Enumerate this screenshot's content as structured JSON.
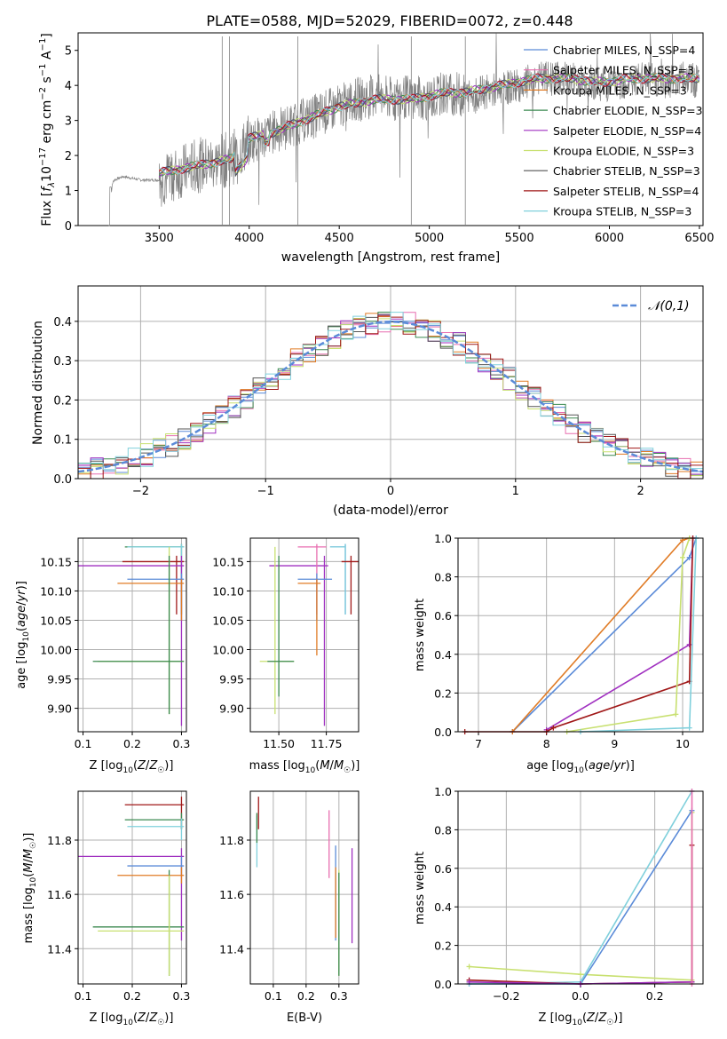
{
  "colors": {
    "grid": "#b0b0b0",
    "chabrier_miles": "#5b8bd8",
    "salpeter_miles": "#e86fb0",
    "kroupa_miles": "#e07b25",
    "chabrier_elodie": "#3b8a50",
    "salpeter_elodie": "#a030c0",
    "kroupa_elodie": "#c8e070",
    "chabrier_stelib": "#555555",
    "salpeter_stelib": "#a01818",
    "kroupa_stelib": "#80d0dc",
    "normal": "#5b8bd8",
    "spectrum_data": "#808080"
  },
  "chart_data": [
    {
      "type": "line",
      "title": "PLATE=0588, MJD=52029, FIBERID=0072, z=0.448",
      "xlabel": "wavelength [Angstrom, rest frame]",
      "ylabel": "Flux [f_λ 10^-17 erg cm^-2 s^-1 A^-1]",
      "xlim": [
        3050,
        6520
      ],
      "ylim": [
        0,
        5.5
      ],
      "xticks": [
        "3500",
        "4000",
        "4500",
        "5000",
        "5500",
        "6000",
        "6500"
      ],
      "yticks": [
        "0",
        "1",
        "2",
        "3",
        "4",
        "5"
      ],
      "legend_position": "top-right",
      "legend": [
        {
          "name": "Chabrier MILES, N_SSP=4",
          "color": "#5b8bd8"
        },
        {
          "name": "Salpeter MILES, N_SSP=3",
          "color": "#e86fb0"
        },
        {
          "name": "Kroupa MILES, N_SSP=3",
          "color": "#e07b25"
        },
        {
          "name": "Chabrier ELODIE, N_SSP=3",
          "color": "#3b8a50"
        },
        {
          "name": "Salpeter ELODIE, N_SSP=4",
          "color": "#a030c0"
        },
        {
          "name": "Kroupa ELODIE, N_SSP=3",
          "color": "#c8e070"
        },
        {
          "name": "Chabrier STELIB, N_SSP=3",
          "color": "#555555"
        },
        {
          "name": "Salpeter STELIB, N_SSP=4",
          "color": "#a01818"
        },
        {
          "name": "Kroupa STELIB, N_SSP=3",
          "color": "#80d0dc"
        }
      ],
      "series": [
        {
          "name": "observed spectrum",
          "x": [
            3050,
            3220,
            3240,
            3250,
            3300,
            3400,
            3500,
            3600,
            3700,
            3800,
            3900,
            4000,
            4100,
            4200,
            4300,
            4400,
            4500,
            4600,
            4700,
            4800,
            4900,
            5000,
            5100,
            5200,
            5300,
            5400,
            5500,
            5600,
            5700,
            5800,
            5900,
            6000,
            6100,
            6200,
            6300,
            6400,
            6500
          ],
          "y": [
            null,
            0,
            1.2,
            1.3,
            1.4,
            1.3,
            1.3,
            1.5,
            1.7,
            1.8,
            1.9,
            2.4,
            2.6,
            2.8,
            3.0,
            3.2,
            3.4,
            3.6,
            3.7,
            3.6,
            3.7,
            3.6,
            3.8,
            3.7,
            3.8,
            3.9,
            4.0,
            4.2,
            4.2,
            4.2,
            4.1,
            4.0,
            4.1,
            4.2,
            4.1,
            4.2,
            4.1
          ]
        },
        {
          "name": "model",
          "x": [
            3500,
            3600,
            3700,
            3800,
            3900,
            4000,
            4100,
            4200,
            4300,
            4400,
            4500,
            4600,
            4700,
            4800,
            4900,
            5000,
            5100,
            5200,
            5300,
            5400,
            5500,
            5600,
            5700,
            5800,
            5900,
            6000,
            6100,
            6200,
            6300,
            6400,
            6500
          ],
          "y": [
            1.5,
            1.6,
            1.7,
            1.8,
            1.9,
            2.5,
            2.6,
            2.8,
            3.0,
            3.2,
            3.4,
            3.5,
            3.6,
            3.6,
            3.6,
            3.7,
            3.8,
            3.8,
            3.9,
            4.0,
            4.1,
            4.2,
            4.2,
            4.2,
            4.1,
            4.1,
            4.2,
            4.2,
            4.2,
            4.2,
            4.2
          ]
        }
      ]
    },
    {
      "type": "line",
      "xlabel": "(data-model)/error",
      "ylabel": "Normed distribution",
      "xlim": [
        -2.5,
        2.5
      ],
      "ylim": [
        0,
        0.49
      ],
      "xticks": [
        "−2",
        "−1",
        "0",
        "1",
        "2"
      ],
      "yticks": [
        "0.0",
        "0.1",
        "0.2",
        "0.3",
        "0.4"
      ],
      "legend": [
        {
          "name": "𝒩(0,1)",
          "color": "#5b8bd8"
        }
      ],
      "legend_position": "top-right",
      "histogram_bin_width": 0.1,
      "histogram_bin_start": -2.5
    },
    {
      "type": "scatter",
      "xlabel": "Z [log10(Z/Z☉)]",
      "ylabel": "age  [log10(age/yr)]",
      "xlim": [
        0.09,
        0.31
      ],
      "ylim": [
        9.86,
        10.19
      ],
      "xticks": [
        "0.1",
        "0.2",
        "0.3"
      ],
      "yticks": [
        "9.90",
        "9.95",
        "10.00",
        "10.05",
        "10.10",
        "10.15"
      ],
      "points": [
        {
          "x": 0.3,
          "y": 10.175,
          "xlo": 0.185,
          "xhi": 0.305,
          "ylo": 10.06,
          "yhi": 10.18,
          "color": "#3b8a50"
        },
        {
          "x": 0.3,
          "y": 10.175,
          "xlo": 0.19,
          "xhi": 0.305,
          "ylo": 10.06,
          "yhi": 10.18,
          "color": "#80d0dc"
        },
        {
          "x": 0.29,
          "y": 10.15,
          "xlo": 0.18,
          "xhi": 0.305,
          "ylo": 10.06,
          "yhi": 10.16,
          "color": "#a01818"
        },
        {
          "x": 0.3,
          "y": 10.143,
          "xlo": 0.09,
          "xhi": 0.305,
          "ylo": 9.87,
          "yhi": 10.16,
          "color": "#a030c0"
        },
        {
          "x": 0.3,
          "y": 10.12,
          "xlo": 0.19,
          "xhi": 0.305,
          "ylo": 10.05,
          "yhi": 10.13,
          "color": "#5b8bd8"
        },
        {
          "x": 0.3,
          "y": 10.113,
          "xlo": 0.17,
          "xhi": 0.305,
          "ylo": 10.05,
          "yhi": 10.12,
          "color": "#e07b25"
        },
        {
          "x": 0.275,
          "y": 9.98,
          "xlo": 0.13,
          "xhi": 0.305,
          "ylo": 9.89,
          "yhi": 10.175,
          "color": "#c8e070"
        },
        {
          "x": 0.275,
          "y": 9.98,
          "xlo": 0.12,
          "xhi": 0.305,
          "ylo": 9.89,
          "yhi": 10.16,
          "color": "#3b8a50"
        }
      ]
    },
    {
      "type": "scatter",
      "xlabel": "mass [log10(M/M☉)]",
      "ylabel": "",
      "xlim": [
        11.35,
        11.92
      ],
      "ylim": [
        9.86,
        10.19
      ],
      "xticks": [
        "11.50",
        "11.75"
      ],
      "yticks": [
        "9.90",
        "9.95",
        "10.00",
        "10.05",
        "10.10",
        "10.15"
      ],
      "points": [
        {
          "x": 11.85,
          "y": 10.175,
          "xlo": 11.77,
          "xhi": 11.85,
          "ylo": 10.06,
          "yhi": 10.18,
          "color": "#5b8bd8"
        },
        {
          "x": 11.85,
          "y": 10.175,
          "xlo": 11.77,
          "xhi": 11.85,
          "ylo": 10.06,
          "yhi": 10.18,
          "color": "#80d0dc"
        },
        {
          "x": 11.88,
          "y": 10.15,
          "xlo": 11.83,
          "xhi": 11.92,
          "ylo": 10.06,
          "yhi": 10.16,
          "color": "#a01818"
        },
        {
          "x": 11.74,
          "y": 10.143,
          "xlo": 11.45,
          "xhi": 11.76,
          "ylo": 9.87,
          "yhi": 10.16,
          "color": "#a030c0"
        },
        {
          "x": 11.7,
          "y": 10.175,
          "xlo": 11.6,
          "xhi": 11.75,
          "ylo": 10.06,
          "yhi": 10.18,
          "color": "#e86fb0"
        },
        {
          "x": 11.7,
          "y": 10.12,
          "xlo": 11.6,
          "xhi": 11.78,
          "ylo": 10.05,
          "yhi": 10.13,
          "color": "#5b8bd8"
        },
        {
          "x": 11.7,
          "y": 10.113,
          "xlo": 11.6,
          "xhi": 11.72,
          "ylo": 9.99,
          "yhi": 10.12,
          "color": "#e07b25"
        },
        {
          "x": 11.48,
          "y": 9.98,
          "xlo": 11.4,
          "xhi": 11.58,
          "ylo": 9.89,
          "yhi": 10.175,
          "color": "#c8e070"
        },
        {
          "x": 11.5,
          "y": 9.98,
          "xlo": 11.44,
          "xhi": 11.58,
          "ylo": 9.92,
          "yhi": 10.16,
          "color": "#3b8a50"
        }
      ]
    },
    {
      "type": "line",
      "xlabel": "age  [log10(age/yr)]",
      "ylabel": "mass weight",
      "xlim": [
        6.7,
        10.3
      ],
      "ylim": [
        0,
        1.0
      ],
      "xticks": [
        "7",
        "8",
        "9",
        "10"
      ],
      "yticks": [
        "0.0",
        "0.2",
        "0.4",
        "0.6",
        "0.8",
        "1.0"
      ],
      "series": [
        {
          "color": "#5b8bd8",
          "x": [
            7.5,
            10.1,
            10.2
          ],
          "y": [
            0.0,
            0.9,
            1.0
          ]
        },
        {
          "color": "#e07b25",
          "x": [
            7.5,
            10.0,
            10.1
          ],
          "y": [
            0.0,
            0.99,
            1.0
          ]
        },
        {
          "color": "#a030c0",
          "x": [
            8.0,
            10.1,
            10.15
          ],
          "y": [
            0.01,
            0.45,
            1.0
          ]
        },
        {
          "color": "#a01818",
          "x": [
            6.8,
            8.0,
            8.1,
            10.1,
            10.15
          ],
          "y": [
            0.0,
            0.0,
            0.02,
            0.26,
            1.0
          ]
        },
        {
          "color": "#c8e070",
          "x": [
            8.3,
            9.9,
            10.0,
            10.1
          ],
          "y": [
            0.0,
            0.09,
            0.9,
            1.0
          ]
        },
        {
          "color": "#80d0dc",
          "x": [
            8.5,
            10.1,
            10.2
          ],
          "y": [
            0.0,
            0.02,
            1.0
          ]
        }
      ]
    },
    {
      "type": "scatter",
      "xlabel": "Z [log10(Z/Z☉)]",
      "ylabel": "mass [log10(M/M☉)]",
      "xlim": [
        0.09,
        0.31
      ],
      "ylim": [
        11.27,
        11.98
      ],
      "xticks": [
        "0.1",
        "0.2",
        "0.3"
      ],
      "yticks": [
        "11.4",
        "11.6",
        "11.8"
      ],
      "points": [
        {
          "x": 0.3,
          "y": 11.93,
          "xlo": 0.185,
          "xhi": 0.305,
          "ylo": 11.84,
          "yhi": 11.96,
          "color": "#a01818"
        },
        {
          "x": 0.3,
          "y": 11.875,
          "xlo": 0.185,
          "xhi": 0.305,
          "ylo": 11.84,
          "yhi": 11.9,
          "color": "#3b8a50"
        },
        {
          "x": 0.3,
          "y": 11.85,
          "xlo": 0.19,
          "xhi": 0.305,
          "ylo": 11.8,
          "yhi": 11.88,
          "color": "#80d0dc"
        },
        {
          "x": 0.3,
          "y": 11.74,
          "xlo": 0.09,
          "xhi": 0.305,
          "ylo": 11.43,
          "yhi": 11.77,
          "color": "#a030c0"
        },
        {
          "x": 0.3,
          "y": 11.705,
          "xlo": 0.19,
          "xhi": 0.305,
          "ylo": 11.67,
          "yhi": 11.74,
          "color": "#5b8bd8"
        },
        {
          "x": 0.3,
          "y": 11.67,
          "xlo": 0.17,
          "xhi": 0.305,
          "ylo": 11.64,
          "yhi": 11.7,
          "color": "#e07b25"
        },
        {
          "x": 0.275,
          "y": 11.48,
          "xlo": 0.12,
          "xhi": 0.305,
          "ylo": 11.3,
          "yhi": 11.69,
          "color": "#3b8a50"
        },
        {
          "x": 0.275,
          "y": 11.465,
          "xlo": 0.13,
          "xhi": 0.305,
          "ylo": 11.3,
          "yhi": 11.67,
          "color": "#c8e070"
        }
      ]
    },
    {
      "type": "scatter",
      "xlabel": "E(B-V)",
      "ylabel": "",
      "xlim": [
        0.03,
        0.36
      ],
      "ylim": [
        11.27,
        11.98
      ],
      "xticks": [
        "0.1",
        "0.2",
        "0.3"
      ],
      "yticks": [
        "11.4",
        "11.6",
        "11.8"
      ],
      "points": [
        {
          "x": 0.055,
          "y": 11.93,
          "ylo": 11.84,
          "yhi": 11.96,
          "color": "#a01818"
        },
        {
          "x": 0.05,
          "y": 11.85,
          "ylo": 11.7,
          "yhi": 11.89,
          "color": "#80d0dc"
        },
        {
          "x": 0.05,
          "y": 11.86,
          "ylo": 11.79,
          "yhi": 11.9,
          "color": "#3b8a50"
        },
        {
          "x": 0.27,
          "y": 11.83,
          "ylo": 11.66,
          "yhi": 11.91,
          "color": "#e86fb0"
        },
        {
          "x": 0.29,
          "y": 11.7,
          "ylo": 11.43,
          "yhi": 11.78,
          "color": "#5b8bd8"
        },
        {
          "x": 0.29,
          "y": 11.67,
          "ylo": 11.44,
          "yhi": 11.7,
          "color": "#e07b25"
        },
        {
          "x": 0.34,
          "y": 11.7,
          "ylo": 11.42,
          "yhi": 11.77,
          "color": "#a030c0"
        },
        {
          "x": 0.3,
          "y": 11.55,
          "ylo": 11.3,
          "yhi": 11.69,
          "color": "#c8e070"
        },
        {
          "x": 0.3,
          "y": 11.55,
          "ylo": 11.3,
          "yhi": 11.68,
          "color": "#3b8a50"
        }
      ]
    },
    {
      "type": "line",
      "xlabel": "Z [log10(Z/Z☉)]",
      "ylabel": "mass weight",
      "xlim": [
        -0.33,
        0.33
      ],
      "ylim": [
        0,
        1.0
      ],
      "xticks": [
        "−0.2",
        "0.0",
        "0.2"
      ],
      "yticks": [
        "0.0",
        "0.2",
        "0.4",
        "0.6",
        "0.8",
        "1.0"
      ],
      "series": [
        {
          "color": "#c8e070",
          "x": [
            -0.3,
            0.0,
            0.3,
            0.3
          ],
          "y": [
            0.09,
            0.05,
            0.02,
            0.89
          ]
        },
        {
          "color": "#5b8bd8",
          "x": [
            -0.3,
            0.0,
            0.3
          ],
          "y": [
            0.0,
            0.0,
            0.9
          ]
        },
        {
          "color": "#80d0dc",
          "x": [
            -0.3,
            0.0,
            0.3
          ],
          "y": [
            0.0,
            0.01,
            1.0
          ]
        },
        {
          "color": "#a01818",
          "x": [
            -0.3,
            0.0,
            0.3,
            0.3
          ],
          "y": [
            0.02,
            0.0,
            0.01,
            0.72
          ]
        },
        {
          "color": "#a030c0",
          "x": [
            -0.3,
            0.0,
            0.3
          ],
          "y": [
            0.01,
            0.0,
            0.01
          ]
        },
        {
          "color": "#e86fb0",
          "x": [
            0.3,
            0.3
          ],
          "y": [
            0.0,
            1.0
          ]
        }
      ]
    }
  ]
}
